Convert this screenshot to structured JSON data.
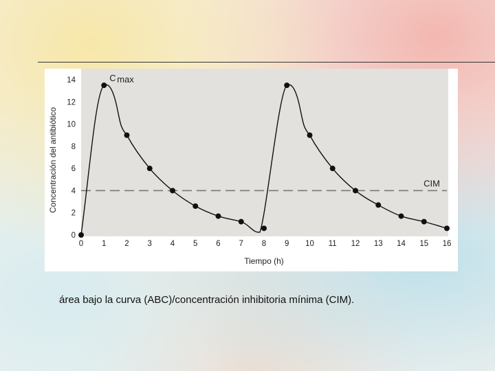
{
  "caption": "área bajo la curva (ABC)/concentración inhibitoria mínima (CIM).",
  "colors": {
    "plot_bg": "#e2e1de",
    "curve": "#111111",
    "threshold": "#777777"
  },
  "chart_data": {
    "type": "line",
    "xlabel": "Tiempo (h)",
    "ylabel": "Concentración del antibiótico",
    "xlim": [
      0,
      16
    ],
    "ylim": [
      0,
      14.5
    ],
    "xticks": [
      "0",
      "1",
      "2",
      "3",
      "4",
      "5",
      "6",
      "7",
      "8",
      "9",
      "10",
      "11",
      "12",
      "13",
      "14",
      "15",
      "16"
    ],
    "yticks": [
      "0",
      "2",
      "4",
      "6",
      "8",
      "10",
      "12",
      "14"
    ],
    "grid": false,
    "series": [
      {
        "x": [
          0,
          1,
          2,
          3,
          4,
          5,
          6,
          7,
          8,
          9,
          10,
          11,
          12,
          13,
          14,
          15,
          16
        ],
        "y": [
          0,
          13.5,
          9.0,
          6.0,
          4.0,
          2.6,
          1.7,
          1.2,
          0.6,
          13.5,
          9.0,
          6.0,
          4.0,
          2.7,
          1.7,
          1.2,
          0.6
        ]
      }
    ],
    "threshold": {
      "label": "CIM",
      "value": 4
    },
    "annotations": [
      {
        "text_main": "C",
        "text_sub": "max",
        "x": 1,
        "y": 13.5
      }
    ]
  }
}
